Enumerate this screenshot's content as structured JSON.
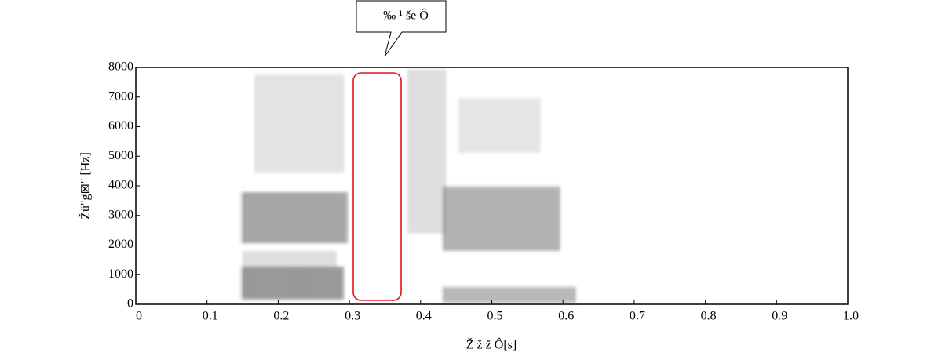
{
  "chart_data": {
    "type": "spectrogram",
    "annotation": "– ‰ ¹  še Ô",
    "xlabel": "Ž ž ž Ô[s]",
    "ylabel": "Žü\"g⊠\" [Hz]",
    "xlim": [
      0,
      1
    ],
    "xticks": [
      0,
      0.1,
      0.2,
      0.3,
      0.4,
      0.5,
      0.6,
      0.7,
      0.8,
      0.9,
      {
        "value": 1,
        "label": "1.0"
      }
    ],
    "ylim": [
      0,
      8000
    ],
    "yticks": [
      0,
      1000,
      2000,
      3000,
      4000,
      5000,
      6000,
      7000,
      8000
    ]
  }
}
